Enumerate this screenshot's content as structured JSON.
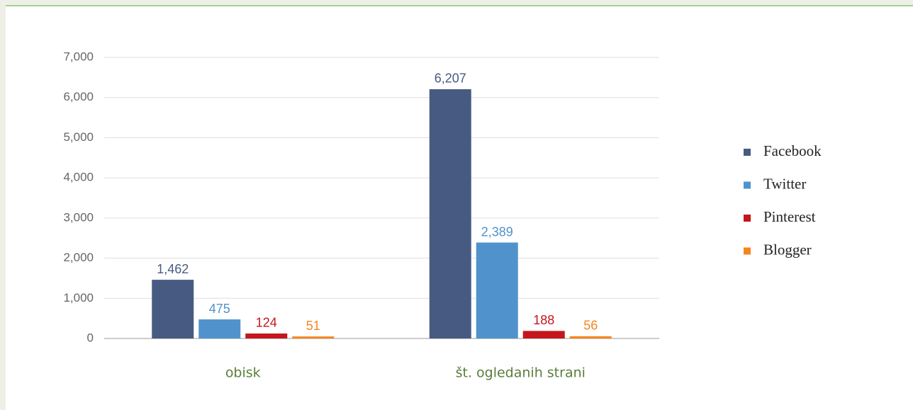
{
  "chart_data": {
    "type": "bar",
    "categories": [
      "obisk",
      "št. ogledanih strani"
    ],
    "series": [
      {
        "name": "Facebook",
        "color": "#475b82",
        "values": [
          1462,
          6207
        ],
        "value_labels": [
          "1,462",
          "6,207"
        ]
      },
      {
        "name": "Twitter",
        "color": "#5093cc",
        "values": [
          475,
          2389
        ],
        "value_labels": [
          "475",
          "2,389"
        ]
      },
      {
        "name": "Pinterest",
        "color": "#c5161d",
        "values": [
          124,
          188
        ],
        "value_labels": [
          "124",
          "188"
        ]
      },
      {
        "name": "Blogger",
        "color": "#f5861f",
        "values": [
          51,
          56
        ],
        "value_labels": [
          "51",
          "56"
        ]
      }
    ],
    "ylim": [
      0,
      7000
    ],
    "yticks": [
      0,
      {
        "value": 1000,
        "label": "1,000"
      },
      {
        "value": 2000,
        "label": "2,000"
      },
      {
        "value": 3000,
        "label": "3,000"
      },
      {
        "value": 4000,
        "label": "4,000"
      },
      {
        "value": 5000,
        "label": "5,000"
      },
      {
        "value": 6000,
        "label": "6,000"
      },
      {
        "value": 7000,
        "label": "7,000"
      }
    ],
    "grid": true,
    "legend": "right"
  }
}
